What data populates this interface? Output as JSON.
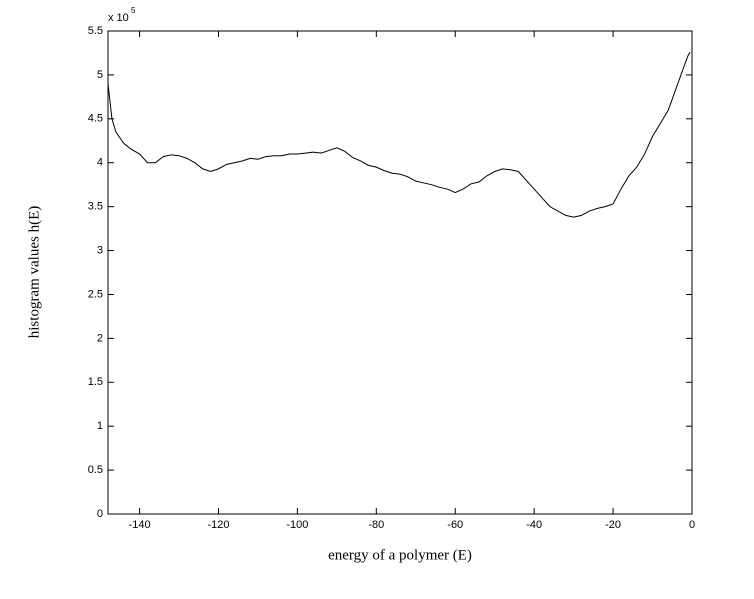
{
  "chart_data": {
    "type": "line",
    "multiplier_label": "x 10",
    "multiplier_exponent": "5",
    "x_label": "energy  of a polymer  (E)",
    "y_label": "histogram values h(E)",
    "x": [
      -148,
      -147,
      -146,
      -144,
      -142,
      -140,
      -138,
      -136,
      -134,
      -132,
      -130,
      -128,
      -126,
      -124,
      -122,
      -120,
      -118,
      -116,
      -114,
      -112,
      -110,
      -108,
      -106,
      -104,
      -102,
      -100,
      -98,
      -96,
      -94,
      -92,
      -90,
      -88,
      -86,
      -84,
      -82,
      -80,
      -78,
      -76,
      -74,
      -72,
      -70,
      -68,
      -66,
      -64,
      -62,
      -60,
      -58,
      -56,
      -54,
      -52,
      -50,
      -48,
      -46,
      -44,
      -42,
      -40,
      -38,
      -36,
      -34,
      -32,
      -30,
      -28,
      -26,
      -24,
      -22,
      -20,
      -18,
      -16,
      -14,
      -12,
      -10,
      -8,
      -6,
      -4,
      -2,
      -1,
      -0.5
    ],
    "series": [
      {
        "color": "#000000",
        "values": [
          4.9,
          4.5,
          4.35,
          4.22,
          4.15,
          4.1,
          4.0,
          4.0,
          4.07,
          4.09,
          4.08,
          4.05,
          4.0,
          3.93,
          3.9,
          3.93,
          3.98,
          4.0,
          4.02,
          4.05,
          4.04,
          4.07,
          4.08,
          4.08,
          4.1,
          4.1,
          4.11,
          4.12,
          4.11,
          4.14,
          4.17,
          4.13,
          4.06,
          4.02,
          3.97,
          3.95,
          3.91,
          3.88,
          3.87,
          3.84,
          3.79,
          3.77,
          3.75,
          3.72,
          3.7,
          3.66,
          3.7,
          3.76,
          3.78,
          3.85,
          3.9,
          3.93,
          3.92,
          3.9,
          3.8,
          3.7,
          3.6,
          3.5,
          3.45,
          3.4,
          3.38,
          3.4,
          3.45,
          3.48,
          3.5,
          3.53,
          3.7,
          3.85,
          3.95,
          4.1,
          4.3,
          4.45,
          4.6,
          4.85,
          5.1,
          5.22,
          5.26
        ]
      }
    ],
    "xlim": [
      -148,
      0
    ],
    "ylim": [
      0,
      5.5
    ],
    "xticks": [
      -140,
      -120,
      -100,
      -80,
      -60,
      -40,
      -20,
      0
    ],
    "yticks": [
      0,
      0.5,
      1,
      1.5,
      2,
      2.5,
      3,
      3.5,
      4,
      4.5,
      5,
      5.5
    ]
  }
}
